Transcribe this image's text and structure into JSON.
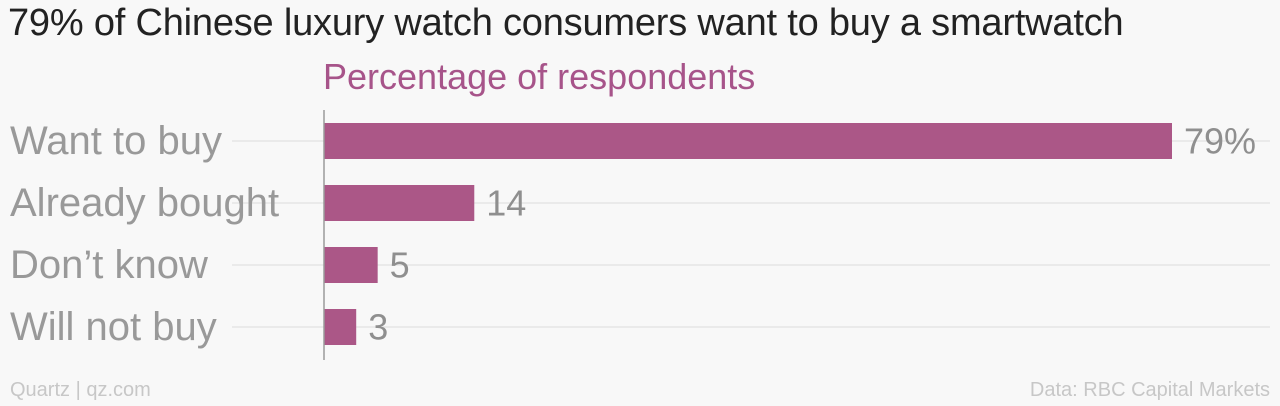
{
  "title": "79% of Chinese luxury watch consumers want to buy a smartwatch",
  "footer": {
    "credit": "Quartz | qz.com",
    "source": "Data: RBC Capital Markets"
  },
  "colors": {
    "bar": "#ab5787",
    "subtitle": "#a7548a",
    "label": "#999999",
    "value": "#8f8f8f",
    "grid": "#e6e6e6",
    "axis": "#9a9a9a"
  },
  "chart_data": {
    "type": "bar",
    "orientation": "horizontal",
    "title": "79% of Chinese luxury watch consumers want to buy a smartwatch",
    "subtitle": "Percentage of respondents",
    "categories": [
      "Want to buy",
      "Already bought",
      "Don’t know",
      "Will not buy"
    ],
    "values": [
      79,
      14,
      5,
      3
    ],
    "value_labels": [
      "79%",
      "14",
      "5",
      "3"
    ],
    "xlim": [
      0,
      79
    ],
    "grid": true,
    "legend": "none"
  }
}
